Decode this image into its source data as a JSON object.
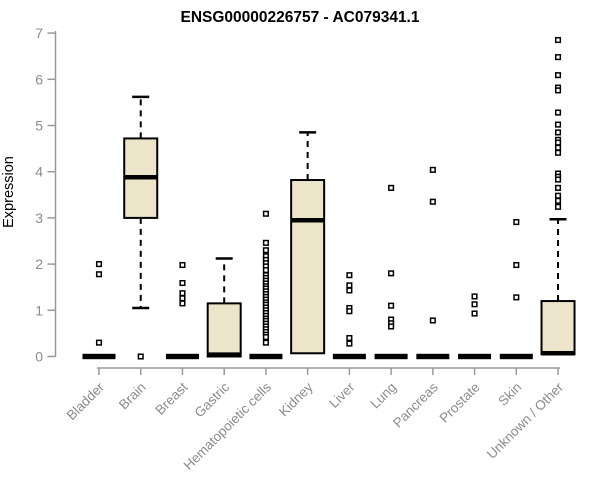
{
  "chart_data": {
    "type": "boxplot",
    "title": "ENSG00000226757 - AC079341.1",
    "ylabel": "Expression",
    "xlabel": "",
    "ylim": [
      0,
      7
    ],
    "yticks": [
      0,
      1,
      2,
      3,
      4,
      5,
      6,
      7
    ],
    "grid": false,
    "legend": "none",
    "categories": [
      "Bladder",
      "Brain",
      "Breast",
      "Gastric",
      "Hematopoietic cells",
      "Kidney",
      "Liver",
      "Lung",
      "Pancreas",
      "Prostate",
      "Skin",
      "Unknown / Other"
    ],
    "series": [
      {
        "name": "Bladder",
        "q1": 0,
        "median": 0,
        "q3": 0,
        "whisker_low": 0,
        "whisker_high": 0,
        "outliers": [
          2.0,
          1.78,
          0.3
        ]
      },
      {
        "name": "Brain",
        "q1": 3.0,
        "median": 3.88,
        "q3": 4.72,
        "whisker_low": 1.05,
        "whisker_high": 5.62,
        "outliers": [
          0
        ]
      },
      {
        "name": "Breast",
        "q1": 0,
        "median": 0,
        "q3": 0,
        "whisker_low": 0,
        "whisker_high": 0,
        "outliers": [
          1.98,
          1.59,
          1.37,
          1.26,
          1.15
        ]
      },
      {
        "name": "Gastric",
        "q1": 0,
        "median": 0.04,
        "q3": 1.15,
        "whisker_low": 0,
        "whisker_high": 2.12,
        "outliers": []
      },
      {
        "name": "Hematopoietic cells",
        "q1": 0,
        "median": 0,
        "q3": 0,
        "whisker_low": 0,
        "whisker_high": 0,
        "outliers": [
          3.09,
          2.46,
          2.3,
          2.17,
          2.09,
          2.02,
          1.95,
          1.87,
          1.76,
          1.7,
          1.64,
          1.58,
          1.52,
          1.47,
          1.41,
          1.35,
          1.29,
          1.23,
          1.17,
          1.12,
          1.06,
          1.0,
          0.94,
          0.88,
          0.82,
          0.77,
          0.71,
          0.65,
          0.59,
          0.53,
          0.47,
          0.42,
          0.3
        ]
      },
      {
        "name": "Kidney",
        "q1": 0.07,
        "median": 2.95,
        "q3": 3.82,
        "whisker_low": 0.07,
        "whisker_high": 4.85,
        "outliers": []
      },
      {
        "name": "Liver",
        "q1": 0,
        "median": 0,
        "q3": 0,
        "whisker_low": 0,
        "whisker_high": 0,
        "outliers": [
          1.76,
          1.54,
          1.43,
          1.05,
          0.98,
          0.4,
          0.28
        ]
      },
      {
        "name": "Lung",
        "q1": 0,
        "median": 0,
        "q3": 0,
        "whisker_low": 0,
        "whisker_high": 0,
        "outliers": [
          3.65,
          1.8,
          1.1,
          0.8,
          0.72,
          0.65
        ]
      },
      {
        "name": "Pancreas",
        "q1": 0,
        "median": 0,
        "q3": 0,
        "whisker_low": 0,
        "whisker_high": 0,
        "outliers": [
          4.04,
          3.35,
          0.78
        ]
      },
      {
        "name": "Prostate",
        "q1": 0,
        "median": 0,
        "q3": 0,
        "whisker_low": 0,
        "whisker_high": 0,
        "outliers": [
          1.3,
          1.13,
          0.93
        ]
      },
      {
        "name": "Skin",
        "q1": 0,
        "median": 0,
        "q3": 0,
        "whisker_low": 0,
        "whisker_high": 0,
        "outliers": [
          2.91,
          1.98,
          1.28
        ]
      },
      {
        "name": "Unknown / Other",
        "q1": 0.05,
        "median": 0.07,
        "q3": 1.2,
        "whisker_low": 0.05,
        "whisker_high": 2.97,
        "outliers": [
          6.85,
          6.48,
          6.09,
          5.82,
          5.76,
          5.28,
          5.02,
          4.85,
          4.69,
          4.63,
          4.52,
          4.41,
          3.96,
          3.89,
          3.83,
          3.65,
          3.48,
          3.37,
          3.24
        ]
      }
    ],
    "colors": {
      "box_fill": "#ECE5CA",
      "box_stroke": "#000000",
      "median_color": "#000000",
      "whisker_color": "#000000",
      "outlier_color": "#000000",
      "axis_color": "#999999",
      "tick_label_color": "#8C8C8C",
      "title_color": "#000000",
      "background": "#FFFFFF"
    }
  }
}
